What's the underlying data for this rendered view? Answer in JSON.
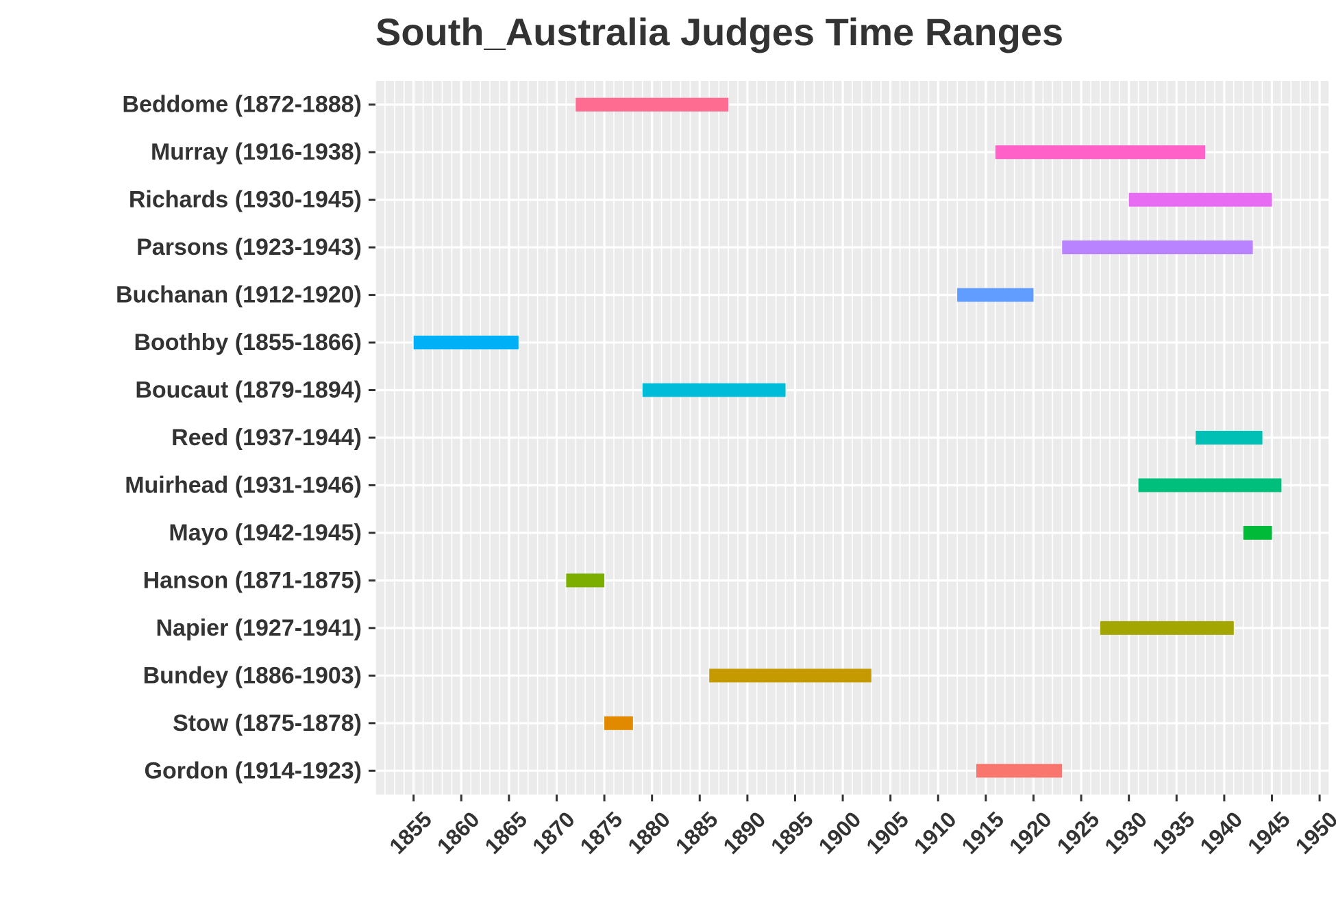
{
  "chart_data": {
    "type": "bar",
    "orientation": "horizontal-range",
    "title": "South_Australia Judges Time Ranges",
    "xlabel": "",
    "ylabel": "",
    "xlim": [
      1851,
      1951
    ],
    "x_ticks": [
      "1855",
      "1860",
      "1865",
      "1870",
      "1875",
      "1880",
      "1885",
      "1890",
      "1895",
      "1900",
      "1905",
      "1910",
      "1915",
      "1920",
      "1925",
      "1930",
      "1935",
      "1940",
      "1945",
      "1950"
    ],
    "grid": true,
    "legend": "none",
    "panel_background": "#EBEBEB",
    "series": [
      {
        "label": "Beddome (1872-1888)",
        "start": 1872,
        "end": 1888,
        "color": "#FF6C91"
      },
      {
        "label": "Murray (1916-1938)",
        "start": 1916,
        "end": 1938,
        "color": "#FF61C9"
      },
      {
        "label": "Richards (1930-1945)",
        "start": 1930,
        "end": 1945,
        "color": "#E76BF3"
      },
      {
        "label": "Parsons (1923-1943)",
        "start": 1923,
        "end": 1943,
        "color": "#B983FF"
      },
      {
        "label": "Buchanan (1912-1920)",
        "start": 1912,
        "end": 1920,
        "color": "#619CFF"
      },
      {
        "label": "Boothby (1855-1866)",
        "start": 1855,
        "end": 1866,
        "color": "#00B0F6"
      },
      {
        "label": "Boucaut (1879-1894)",
        "start": 1879,
        "end": 1894,
        "color": "#00BCD8"
      },
      {
        "label": "Reed (1937-1944)",
        "start": 1937,
        "end": 1944,
        "color": "#00BFB4"
      },
      {
        "label": "Muirhead (1931-1946)",
        "start": 1931,
        "end": 1946,
        "color": "#00BF7D"
      },
      {
        "label": "Mayo (1942-1945)",
        "start": 1942,
        "end": 1945,
        "color": "#00BA38"
      },
      {
        "label": "Hanson (1871-1875)",
        "start": 1871,
        "end": 1875,
        "color": "#7CAE00"
      },
      {
        "label": "Napier (1927-1941)",
        "start": 1927,
        "end": 1941,
        "color": "#A3A500"
      },
      {
        "label": "Bundey (1886-1903)",
        "start": 1886,
        "end": 1903,
        "color": "#C49A00"
      },
      {
        "label": "Stow (1875-1878)",
        "start": 1875,
        "end": 1878,
        "color": "#E18A00"
      },
      {
        "label": "Gordon (1914-1923)",
        "start": 1914,
        "end": 1923,
        "color": "#F8766D"
      }
    ]
  }
}
